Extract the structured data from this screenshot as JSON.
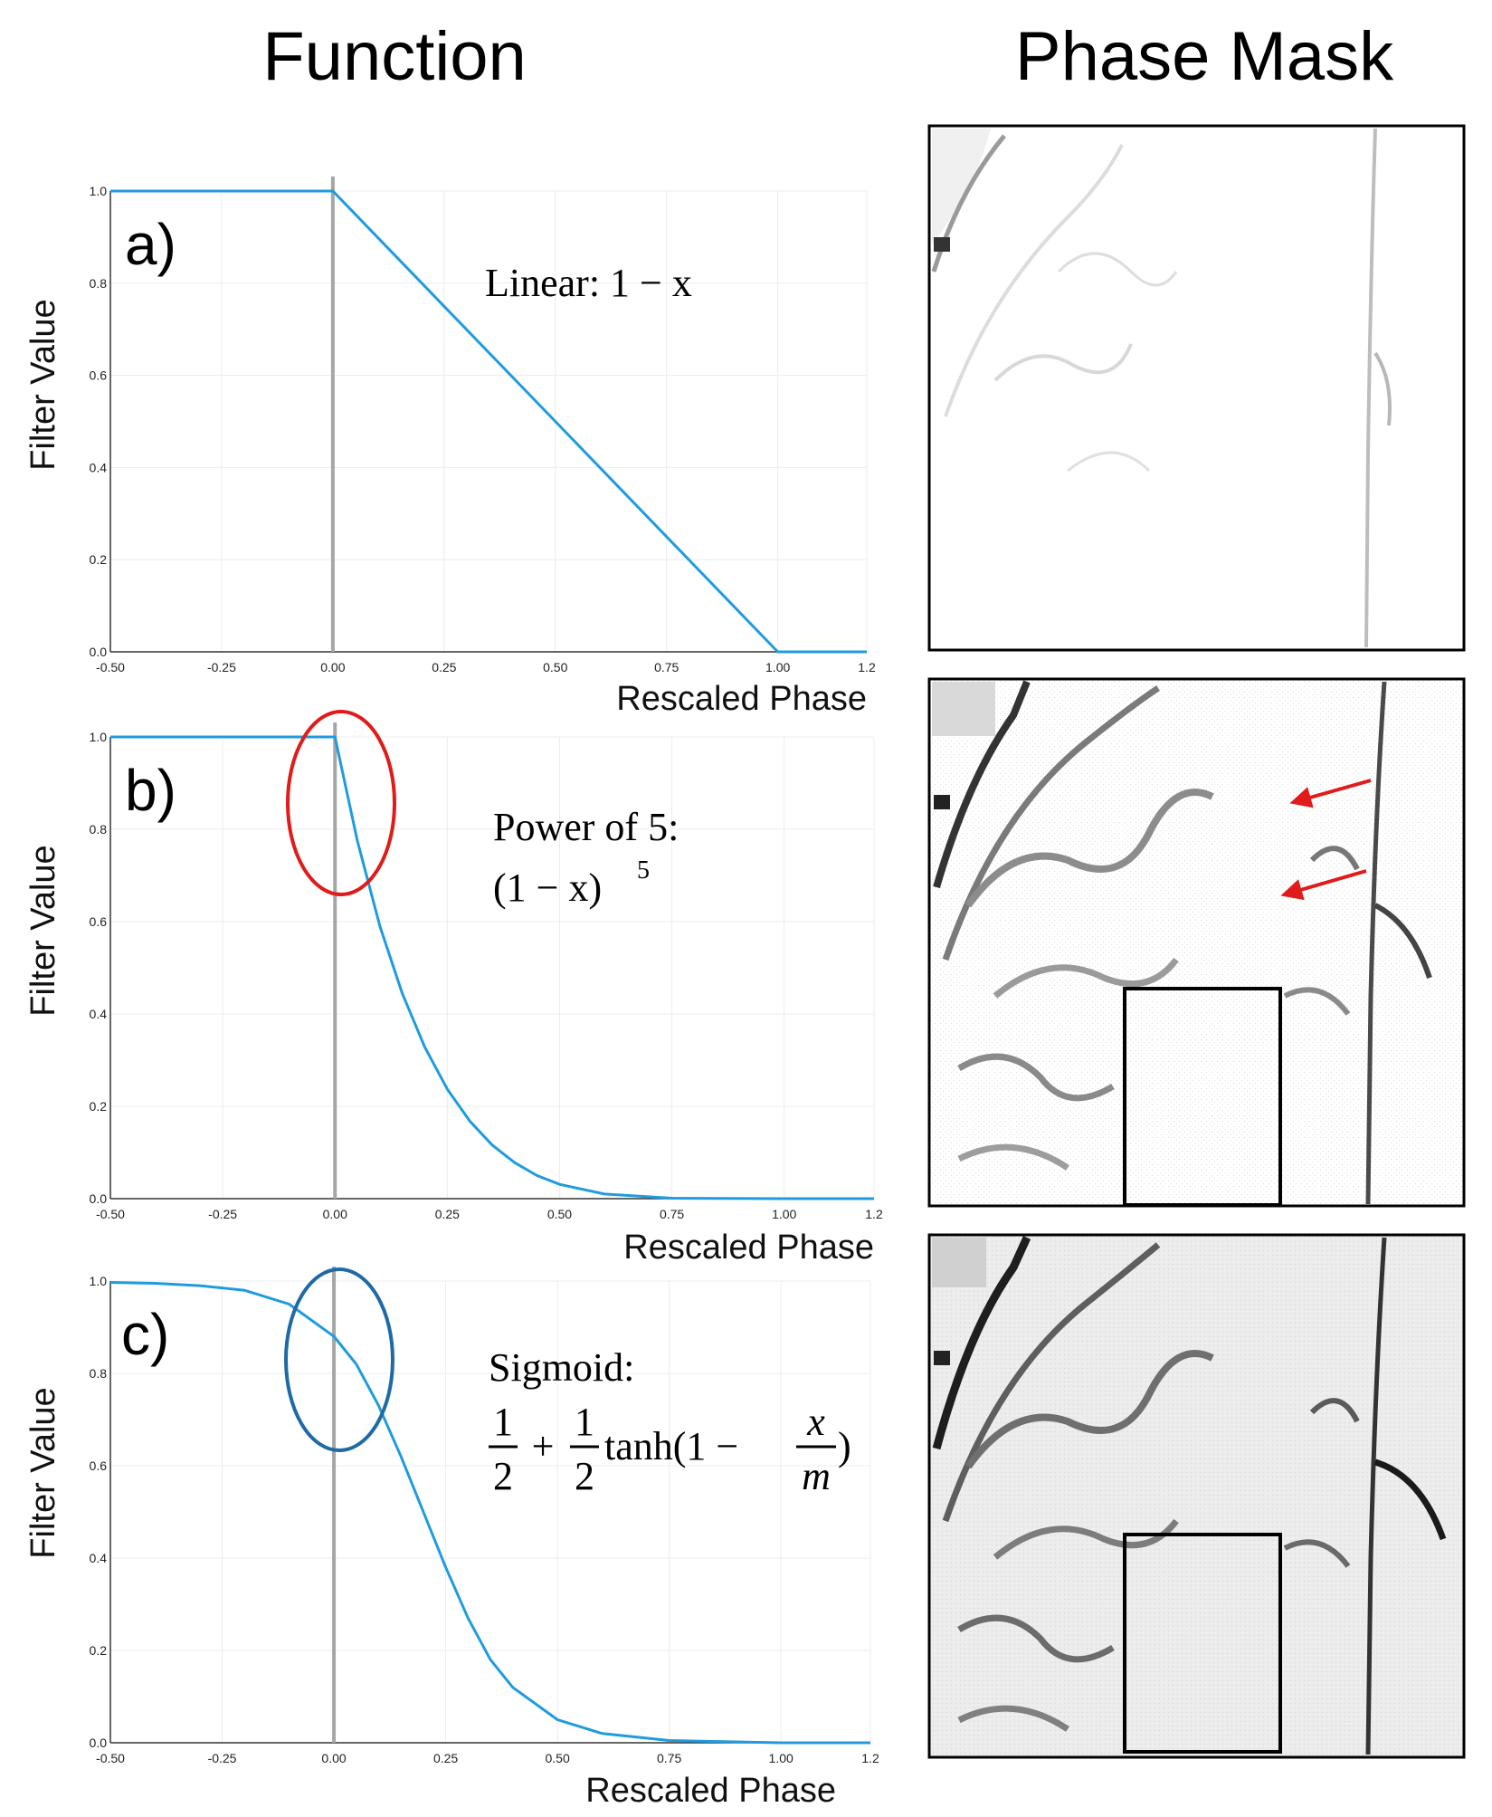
{
  "header": {
    "function_title": "Function",
    "phase_mask_title": "Phase Mask"
  },
  "colors": {
    "curve": "#1f9bde",
    "zero_line": "#a6a6a6",
    "grid": "#ececec",
    "highlight_red": "#e01b1b",
    "highlight_blue": "#1f6aa5",
    "frame": "#000000"
  },
  "chart_data": [
    {
      "type": "line",
      "panel": "a)",
      "xlabel": "Rescaled Phase",
      "ylabel": "Filter Value",
      "xlim": [
        -0.5,
        1.2
      ],
      "ylim": [
        0,
        1
      ],
      "xticks": [
        "-0.50",
        "-0.25",
        "0.00",
        "0.25",
        "0.50",
        "0.75",
        "1.00",
        "1.2"
      ],
      "yticks": [
        "0.0",
        "0.2",
        "0.4",
        "0.6",
        "0.8",
        "1.0"
      ],
      "grid": true,
      "annotation": "Linear:  1 − x",
      "x": [
        -0.5,
        -0.25,
        0.0,
        0.25,
        0.5,
        0.75,
        1.0,
        1.2
      ],
      "y": [
        1.0,
        1.0,
        1.0,
        0.75,
        0.5,
        0.25,
        0.0,
        0.0
      ]
    },
    {
      "type": "line",
      "panel": "b)",
      "xlabel": "Rescaled Phase",
      "ylabel": "Filter Value",
      "xlim": [
        -0.5,
        1.2
      ],
      "ylim": [
        0,
        1
      ],
      "xticks": [
        "-0.50",
        "-0.25",
        "0.00",
        "0.25",
        "0.50",
        "0.75",
        "1.00",
        "1.2"
      ],
      "yticks": [
        "0.0",
        "0.2",
        "0.4",
        "0.6",
        "0.8",
        "1.0"
      ],
      "grid": true,
      "annotation_line1": "Power of 5:",
      "annotation_line2": "(1 − x)",
      "annotation_exp": "5",
      "highlight": "red ellipse around x = 0",
      "x": [
        -0.5,
        -0.25,
        0.0,
        0.05,
        0.1,
        0.15,
        0.2,
        0.25,
        0.3,
        0.35,
        0.4,
        0.45,
        0.5,
        0.6,
        0.75,
        1.0,
        1.2
      ],
      "y": [
        1.0,
        1.0,
        1.0,
        0.774,
        0.59,
        0.444,
        0.328,
        0.237,
        0.168,
        0.116,
        0.078,
        0.05,
        0.031,
        0.01,
        0.001,
        0.0,
        0.0
      ]
    },
    {
      "type": "line",
      "panel": "c)",
      "xlabel": "Rescaled Phase",
      "ylabel": "Filter Value",
      "xlim": [
        -0.5,
        1.2
      ],
      "ylim": [
        0,
        1
      ],
      "xticks": [
        "-0.50",
        "-0.25",
        "0.00",
        "0.25",
        "0.50",
        "0.75",
        "1.00",
        "1.2"
      ],
      "yticks": [
        "0.0",
        "0.2",
        "0.4",
        "0.6",
        "0.8",
        "1.0"
      ],
      "grid": true,
      "annotation_line1": "Sigmoid:",
      "formula_one": "1",
      "formula_two": "2",
      "formula_plus": "+",
      "formula_tanh": "tanh(1 −",
      "formula_x": "x",
      "formula_m": "m",
      "formula_close": ")",
      "highlight": "blue ellipse around x = 0",
      "x": [
        -0.5,
        -0.4,
        -0.3,
        -0.2,
        -0.1,
        0.0,
        0.05,
        0.1,
        0.15,
        0.2,
        0.25,
        0.3,
        0.35,
        0.4,
        0.5,
        0.6,
        0.75,
        1.0,
        1.2
      ],
      "y": [
        0.997,
        0.995,
        0.99,
        0.98,
        0.95,
        0.88,
        0.82,
        0.73,
        0.62,
        0.5,
        0.38,
        0.27,
        0.18,
        0.12,
        0.05,
        0.02,
        0.005,
        0.0,
        0.0
      ]
    }
  ]
}
